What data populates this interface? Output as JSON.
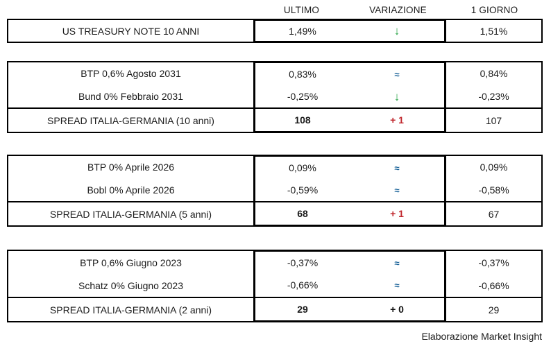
{
  "header": {
    "columns": [
      "ULTIMO",
      "VARIAZIONE",
      "1 GIORNO"
    ]
  },
  "colors": {
    "green": "#27a347",
    "blue": "#1b6399",
    "red": "#c0272d",
    "text": "#1a1a1a",
    "border": "#000000"
  },
  "sections": [
    {
      "rows": [
        {
          "label": "US TREASURY NOTE 10 ANNI",
          "ultimo": "1,49%",
          "variazione": "↓",
          "var_type": "down",
          "giorno": "1,51%",
          "is_spread": false
        }
      ]
    },
    {
      "rows": [
        {
          "label": "BTP 0,6% Agosto 2031",
          "ultimo": "0,83%",
          "variazione": "≈",
          "var_type": "approx",
          "giorno": "0,84%",
          "is_spread": false
        },
        {
          "label": "Bund 0% Febbraio 2031",
          "ultimo": "-0,25%",
          "variazione": "↓",
          "var_type": "down",
          "giorno": "-0,23%",
          "is_spread": false
        },
        {
          "label": "SPREAD ITALIA-GERMANIA (10 anni)",
          "ultimo": "108",
          "variazione": "+ 1",
          "var_type": "pos",
          "giorno": "107",
          "is_spread": true
        }
      ]
    },
    {
      "rows": [
        {
          "label": "BTP 0% Aprile 2026",
          "ultimo": "0,09%",
          "variazione": "≈",
          "var_type": "approx",
          "giorno": "0,09%",
          "is_spread": false
        },
        {
          "label": "Bobl 0% Aprile 2026",
          "ultimo": "-0,59%",
          "variazione": "≈",
          "var_type": "approx",
          "giorno": "-0,58%",
          "is_spread": false
        },
        {
          "label": "SPREAD ITALIA-GERMANIA (5 anni)",
          "ultimo": "68",
          "variazione": "+ 1",
          "var_type": "pos",
          "giorno": "67",
          "is_spread": true
        }
      ]
    },
    {
      "rows": [
        {
          "label": "BTP 0,6% Giugno 2023",
          "ultimo": "-0,37%",
          "variazione": "≈",
          "var_type": "approx",
          "giorno": "-0,37%",
          "is_spread": false
        },
        {
          "label": "Schatz 0% Giugno 2023",
          "ultimo": "-0,66%",
          "variazione": "≈",
          "var_type": "approx",
          "giorno": "-0,66%",
          "is_spread": false
        },
        {
          "label": "SPREAD ITALIA-GERMANIA (2 anni)",
          "ultimo": "29",
          "variazione": "+ 0",
          "var_type": "zero",
          "giorno": "29",
          "is_spread": true
        }
      ]
    }
  ],
  "footer": {
    "credit": "Elaborazione Market Insight"
  }
}
